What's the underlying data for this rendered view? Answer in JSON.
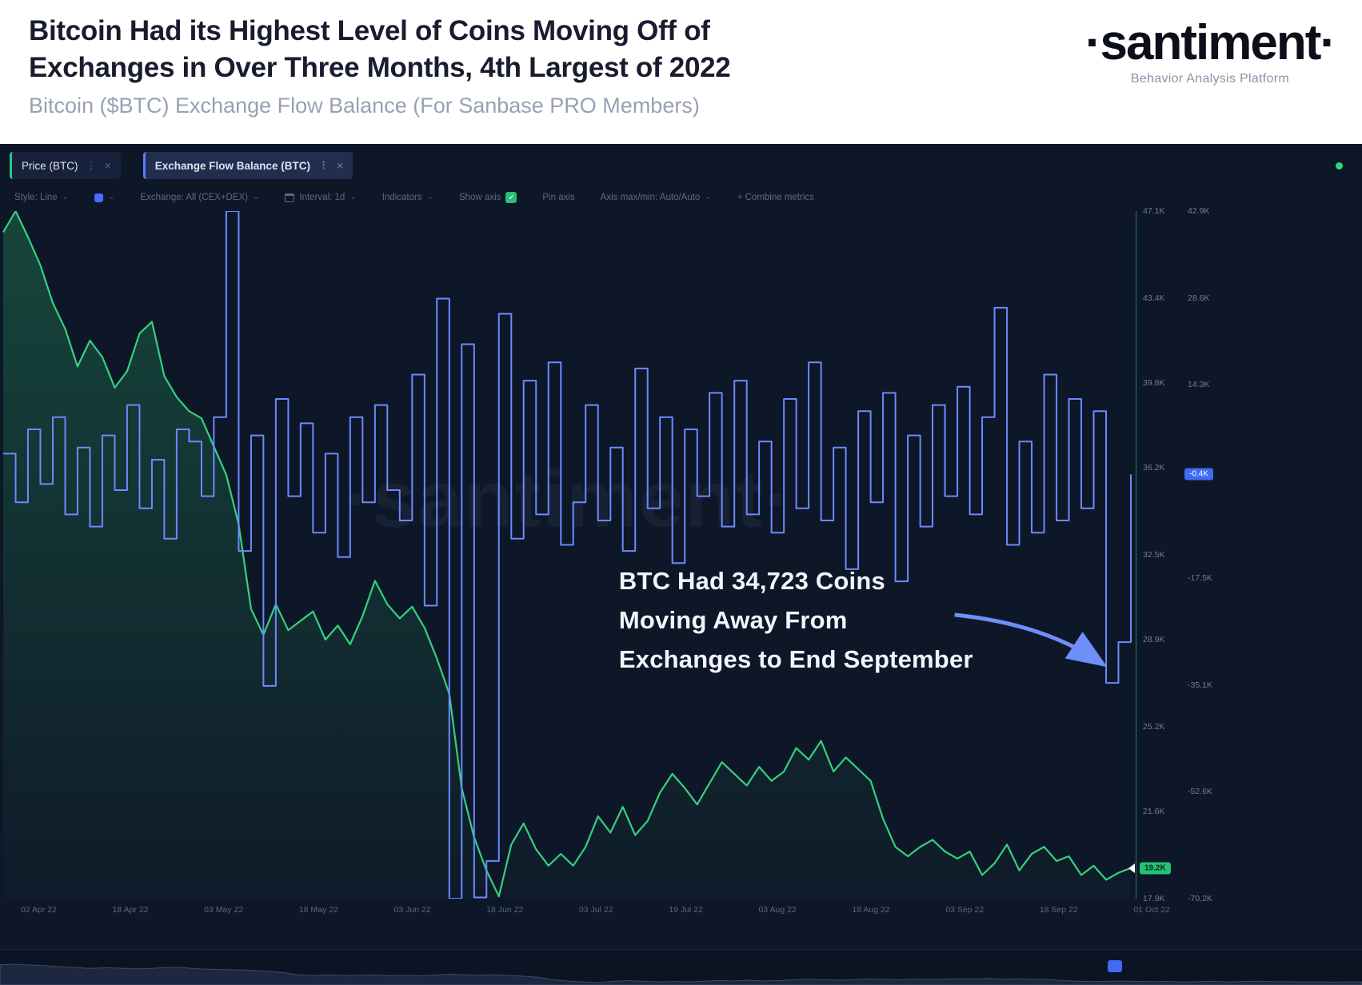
{
  "header": {
    "title_line1": "Bitcoin Had its Highest Level of Coins Moving Off of",
    "title_line2": "Exchanges in Over Three Months, 4th Largest of 2022",
    "subtitle": "Bitcoin ($BTC) Exchange Flow Balance (For Sanbase PRO Members)",
    "logo": "·santiment·",
    "tagline": "Behavior Analysis Platform"
  },
  "tabs": [
    {
      "label": "Price (BTC)",
      "accent_color": "#26c98a"
    },
    {
      "label": "Exchange Flow Balance (BTC)",
      "accent_color": "#5b7ef5"
    }
  ],
  "toolbar": {
    "style_label": "Style: Line",
    "exchange_label": "Exchange: All (CEX+DEX)",
    "interval_label": "Interval: 1d",
    "indicators_label": "Indicators",
    "show_axis_label": "Show axis",
    "pin_axis_label": "Pin axis",
    "axis_maxmin_label": "Axis max/min: Auto/Auto",
    "combine_label": "+ Combine metrics"
  },
  "icons": {
    "chevron": "⌄",
    "close": "×",
    "menu": "⋮",
    "check": "✓"
  },
  "watermark": "·santiment·",
  "annotation": {
    "line1": "BTC Had 34,723 Coins",
    "line2": "Moving Away From",
    "line3": "Exchanges to End September"
  },
  "badges": {
    "price": "19.2K",
    "flow": "-0.4K"
  },
  "colors": {
    "price_line": "#35d07f",
    "flow_line": "#6b8afd",
    "price_badge_bg": "#23c275",
    "flow_badge_bg": "#3e6bf2",
    "background": "#0e1728",
    "annotation_arrow": "#6f8ef7",
    "status_dot": "#2bd67b"
  },
  "chart_data": {
    "type": "line",
    "title": "Bitcoin ($BTC) Exchange Flow Balance",
    "legend": [
      "Price (BTC)",
      "Exchange Flow Balance (BTC)"
    ],
    "grid": false,
    "x_range": [
      "02 Apr 22",
      "01 Oct 22"
    ],
    "x_tick_labels": [
      "02 Apr 22",
      "18 Apr 22",
      "03 May 22",
      "18 May 22",
      "03 Jun 22",
      "18 Jun 22",
      "03 Jul 22",
      "19 Jul 22",
      "03 Aug 22",
      "18 Aug 22",
      "03 Sep 22",
      "18 Sep 22",
      "01 Oct 22"
    ],
    "annotation_value_coins": 34723,
    "badge_values": {
      "price": 19.2,
      "flow": -0.4
    },
    "axes": {
      "price": {
        "side": "right",
        "unit": "K USD",
        "ylim_k": [
          17.9,
          47.1
        ],
        "ticks": [
          {
            "label": "47.1K",
            "value": 47.1
          },
          {
            "label": "43.4K",
            "value": 43.4
          },
          {
            "label": "39.8K",
            "value": 39.8
          },
          {
            "label": "36.2K",
            "value": 36.2
          },
          {
            "label": "32.5K",
            "value": 32.5
          },
          {
            "label": "28.9K",
            "value": 28.9
          },
          {
            "label": "25.2K",
            "value": 25.2
          },
          {
            "label": "21.6K",
            "value": 21.6
          },
          {
            "label": "17.9K",
            "value": 17.9
          }
        ]
      },
      "flow": {
        "side": "far-right",
        "unit": "K BTC",
        "ylim_k": [
          -70.2,
          42.9
        ],
        "ticks": [
          {
            "label": "42.9K",
            "value": 42.9
          },
          {
            "label": "28.6K",
            "value": 28.6
          },
          {
            "label": "14.3K",
            "value": 14.3
          },
          {
            "label": "-17.5K",
            "value": -17.5
          },
          {
            "label": "-35.1K",
            "value": -35.1
          },
          {
            "label": "-52.6K",
            "value": -52.6
          },
          {
            "label": "-70.2K",
            "value": -70.2
          }
        ]
      }
    },
    "series": [
      {
        "name": "Price (BTC)",
        "render": "line",
        "fill": true,
        "color": "#35d07f",
        "width": 2.2,
        "axis": "price",
        "values_k": [
          46.2,
          47.1,
          46.0,
          44.8,
          43.2,
          42.1,
          40.5,
          41.6,
          40.9,
          39.6,
          40.3,
          41.9,
          42.4,
          40.1,
          39.2,
          38.6,
          38.3,
          37.1,
          35.9,
          33.8,
          30.2,
          29.1,
          30.4,
          29.3,
          29.7,
          30.1,
          28.9,
          29.5,
          28.7,
          29.9,
          31.4,
          30.4,
          29.8,
          30.3,
          29.4,
          28.1,
          26.6,
          22.6,
          20.5,
          19.1,
          18.0,
          20.2,
          21.1,
          20.0,
          19.3,
          19.8,
          19.3,
          20.1,
          21.4,
          20.7,
          21.8,
          20.6,
          21.2,
          22.4,
          23.2,
          22.6,
          21.9,
          22.8,
          23.7,
          23.2,
          22.7,
          23.5,
          22.9,
          23.3,
          24.3,
          23.8,
          24.6,
          23.3,
          23.9,
          23.4,
          22.9,
          21.3,
          20.1,
          19.7,
          20.1,
          20.4,
          19.9,
          19.6,
          19.9,
          18.9,
          19.4,
          20.2,
          19.1,
          19.8,
          20.1,
          19.5,
          19.7,
          18.9,
          19.3,
          18.7,
          19.0,
          19.2
        ]
      },
      {
        "name": "Exchange Flow Balance (BTC)",
        "render": "step",
        "fill": false,
        "color": "#6b8afd",
        "width": 2,
        "axis": "flow",
        "values_k": [
          3,
          -5,
          7,
          -2,
          9,
          -7,
          4,
          -9,
          6,
          -3,
          11,
          -6,
          2,
          -11,
          7,
          5,
          -4,
          9,
          42.9,
          -13,
          6,
          -35.2,
          12,
          -4,
          8,
          -10,
          3,
          -14,
          9,
          -5,
          11,
          -3,
          -8,
          16,
          -22,
          28.5,
          -70.2,
          21,
          -70.0,
          -64,
          26,
          -11,
          15,
          -7,
          18,
          -12,
          -5,
          11,
          -8,
          4,
          -13,
          17,
          -6,
          9,
          -15,
          7,
          -4,
          13,
          -9,
          15,
          -7,
          5,
          -10,
          12,
          -6,
          18,
          -8,
          4,
          -16,
          10,
          -5,
          13,
          -18,
          6,
          -9,
          11,
          -4,
          14,
          -7,
          9,
          27,
          -12,
          5,
          -10,
          16,
          -8,
          12,
          -6,
          10,
          -34.7,
          -28,
          -0.4
        ]
      }
    ]
  }
}
